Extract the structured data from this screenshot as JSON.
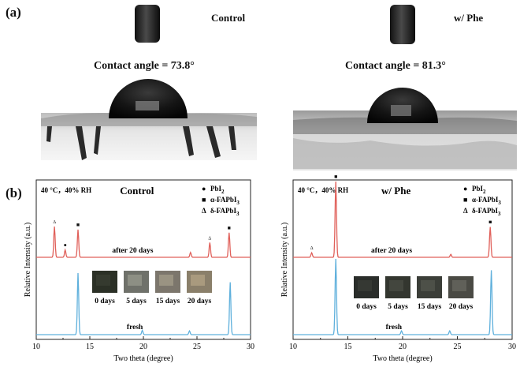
{
  "panel_a": {
    "label": "(a)",
    "left": {
      "condition": "Control",
      "contact_angle": "Contact angle = 73.8°"
    },
    "right": {
      "condition": "w/ Phe",
      "contact_angle": "Contact angle = 81.3°"
    }
  },
  "panel_b": {
    "label": "(b)"
  },
  "chart_data": [
    {
      "type": "line",
      "title": "Control",
      "conditions": "40 °C，40% RH",
      "xlabel": "Two theta (degree)",
      "ylabel": "Relative Intensity (a.u.)",
      "xlim": [
        10,
        30
      ],
      "xticks": [
        10,
        15,
        20,
        25,
        30
      ],
      "legend": [
        {
          "marker": "●",
          "label": "PbI",
          "sub": "2"
        },
        {
          "marker": "■",
          "label": "α-FAPbI",
          "sub": "3"
        },
        {
          "marker": "Δ",
          "label": "δ-FAPbI",
          "sub": "3"
        }
      ],
      "series": [
        {
          "name": "after 20 days",
          "color": "#e0605a",
          "peaks": [
            [
              11.7,
              0.5
            ],
            [
              12.7,
              0.12
            ],
            [
              13.9,
              0.45
            ],
            [
              24.4,
              0.08
            ],
            [
              26.2,
              0.24
            ],
            [
              28.0,
              0.4
            ]
          ],
          "peak_markers": [
            [
              "Δ",
              11.7
            ],
            [
              "●",
              12.7
            ],
            [
              "■",
              13.9
            ],
            [
              "Δ",
              26.2
            ],
            [
              "■",
              28.0
            ]
          ]
        },
        {
          "name": "fresh",
          "color": "#5fb0dc",
          "peaks": [
            [
              13.9,
              1.0
            ],
            [
              19.9,
              0.07
            ],
            [
              24.3,
              0.06
            ],
            [
              28.1,
              0.85
            ]
          ]
        }
      ],
      "photos": [
        "0 days",
        "5 days",
        "15 days",
        "20 days"
      ]
    },
    {
      "type": "line",
      "title": "w/ Phe",
      "conditions": "40 °C，40% RH",
      "xlabel": "Two theta (degree)",
      "ylabel": "Relative Intensity (a.u.)",
      "xlim": [
        10,
        30
      ],
      "xticks": [
        10,
        15,
        20,
        25,
        30
      ],
      "legend": [
        {
          "marker": "●",
          "label": "PbI",
          "sub": "2"
        },
        {
          "marker": "■",
          "label": "α-FAPbI",
          "sub": "3"
        },
        {
          "marker": "Δ",
          "label": "δ-FAPbI",
          "sub": "3"
        }
      ],
      "series": [
        {
          "name": "after 20 days",
          "color": "#e0605a",
          "peaks": [
            [
              11.7,
              0.06
            ],
            [
              13.9,
              1.0
            ],
            [
              24.4,
              0.04
            ],
            [
              28.0,
              0.4
            ]
          ],
          "peak_markers": [
            [
              "Δ",
              11.7
            ],
            [
              "■",
              13.9
            ],
            [
              "■",
              28.0
            ]
          ]
        },
        {
          "name": "fresh",
          "color": "#5fb0dc",
          "peaks": [
            [
              13.9,
              1.0
            ],
            [
              19.9,
              0.05
            ],
            [
              24.3,
              0.05
            ],
            [
              28.1,
              0.85
            ]
          ]
        }
      ],
      "photos": [
        "0 days",
        "5 days",
        "15 days",
        "20 days"
      ]
    }
  ]
}
